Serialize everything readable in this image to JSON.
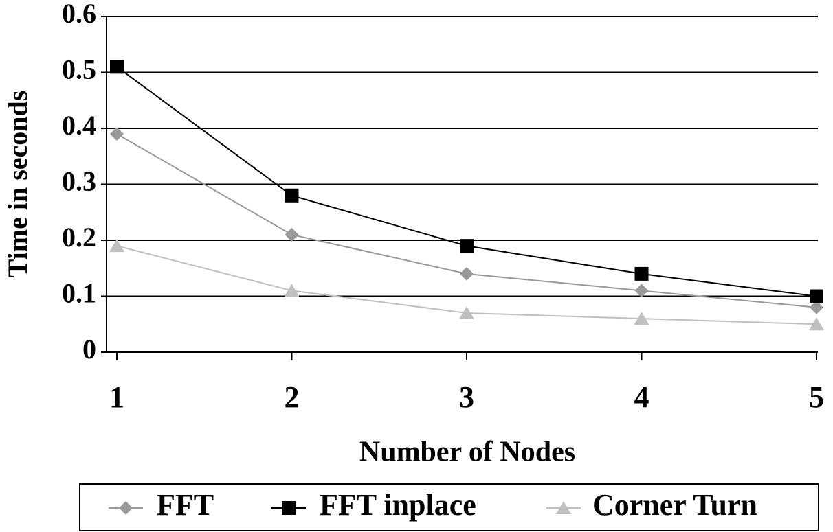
{
  "chart_data": {
    "type": "line",
    "x_label": "Number of Nodes",
    "y_label": "Time in seconds",
    "x": [
      1,
      2,
      3,
      4,
      5
    ],
    "xlim": [
      1,
      5
    ],
    "xticks": [
      1,
      2,
      3,
      4,
      5
    ],
    "ylim": [
      0,
      0.6
    ],
    "yticks": [
      0,
      0.1,
      0.2,
      0.3,
      0.4,
      0.5,
      0.6
    ],
    "grid": true,
    "legend": "bottom",
    "series": [
      {
        "name": "FFT",
        "color": "#999999",
        "marker": "diamond",
        "values": [
          0.39,
          0.21,
          0.14,
          0.11,
          0.08
        ]
      },
      {
        "name": "FFT inplace",
        "color": "#000000",
        "marker": "square",
        "values": [
          0.51,
          0.28,
          0.19,
          0.14,
          0.1
        ]
      },
      {
        "name": "Corner Turn",
        "color": "#c0c0c0",
        "marker": "triangle",
        "values": [
          0.19,
          0.11,
          0.07,
          0.06,
          0.05
        ]
      }
    ]
  }
}
